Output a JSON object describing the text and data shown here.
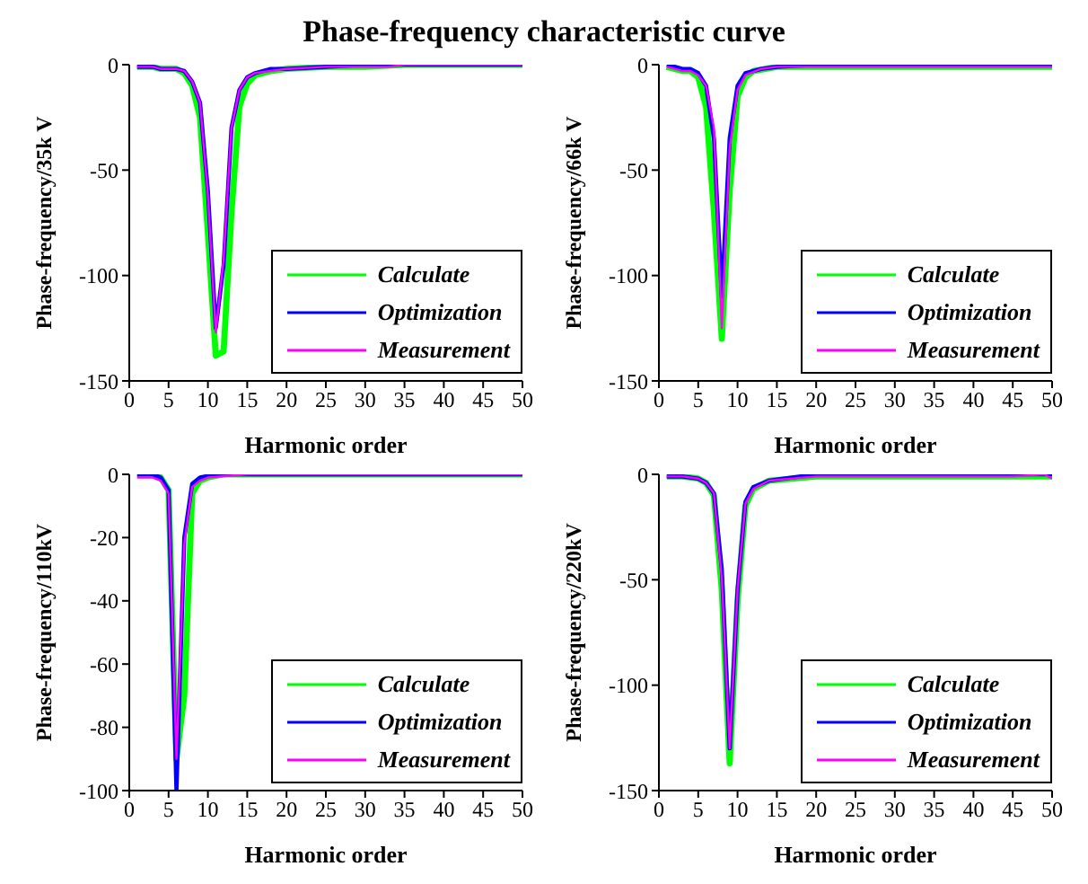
{
  "chart_data": [
    {
      "type": "line",
      "title": "Phase-frequency characteristic curve",
      "xlabel": "Harmonic order",
      "ylabel": "Phase-frequency/35k V",
      "xlim": [
        0,
        50
      ],
      "xticks": [
        0,
        5,
        10,
        15,
        20,
        25,
        30,
        35,
        40,
        45,
        50
      ],
      "ylim": [
        -150,
        0
      ],
      "yticks": [
        -150,
        -100,
        -50,
        0
      ],
      "grid": false,
      "legend": "bottom right",
      "series": [
        {
          "name": "Calculate",
          "color": "#00ff00",
          "x": [
            1,
            3,
            4,
            6,
            7,
            8,
            9,
            10,
            11,
            12,
            13,
            14,
            15,
            16,
            18,
            20,
            25,
            30,
            35,
            50
          ],
          "values": [
            -1,
            -1,
            -2,
            -2,
            -4,
            -10,
            -25,
            -80,
            -138,
            -136,
            -70,
            -20,
            -9,
            -5,
            -3,
            -2,
            -1,
            -1,
            0,
            0
          ]
        },
        {
          "name": "Optimization",
          "color": "#0000ff",
          "x": [
            1,
            3,
            4,
            6,
            7,
            8,
            9,
            10,
            11,
            12,
            13,
            14,
            15,
            16,
            18,
            20,
            25,
            30,
            50
          ],
          "values": [
            -1,
            -1,
            -2,
            -2,
            -3,
            -8,
            -18,
            -60,
            -125,
            -95,
            -30,
            -12,
            -6,
            -4,
            -2,
            -2,
            -1,
            0,
            0
          ]
        },
        {
          "name": "Measurement",
          "color": "#ff00ff",
          "x": [
            1,
            3,
            4,
            6,
            7,
            8,
            9,
            10,
            11,
            12,
            13,
            14,
            15,
            16,
            18,
            20,
            25,
            33,
            35,
            50
          ],
          "values": [
            -1,
            -1,
            -2,
            -2,
            -3,
            -8,
            -18,
            -62,
            -127,
            -92,
            -30,
            -12,
            -6,
            -4,
            -3,
            -2,
            -1,
            -1,
            0,
            0
          ]
        }
      ]
    },
    {
      "type": "line",
      "xlabel": "Harmonic order",
      "ylabel": "Phase-frequency/66k V",
      "xlim": [
        0,
        50
      ],
      "xticks": [
        0,
        5,
        10,
        15,
        20,
        25,
        30,
        35,
        40,
        45,
        50
      ],
      "ylim": [
        -150,
        0
      ],
      "yticks": [
        -150,
        -100,
        -50,
        0
      ],
      "grid": false,
      "legend": "bottom right",
      "series": [
        {
          "name": "Calculate",
          "color": "#00ff00",
          "x": [
            1,
            2,
            3,
            4,
            5,
            6,
            7,
            8,
            9,
            10,
            11,
            12,
            15,
            20,
            50
          ],
          "values": [
            -1,
            -2,
            -3,
            -3,
            -6,
            -20,
            -70,
            -130,
            -60,
            -15,
            -6,
            -3,
            -1,
            -1,
            -1
          ]
        },
        {
          "name": "Optimization",
          "color": "#0000ff",
          "x": [
            1,
            2,
            3,
            4,
            5,
            6,
            7,
            8,
            9,
            10,
            11,
            13,
            15,
            20,
            50
          ],
          "values": [
            0,
            -1,
            -2,
            -2,
            -4,
            -10,
            -35,
            -110,
            -35,
            -10,
            -4,
            -2,
            -1,
            0,
            0
          ]
        },
        {
          "name": "Measurement",
          "color": "#ff00ff",
          "x": [
            1,
            2,
            3,
            4,
            5,
            6,
            7,
            8,
            9,
            10,
            11,
            13,
            15,
            20,
            50
          ],
          "values": [
            -1,
            -2,
            -3,
            -3,
            -5,
            -10,
            -30,
            -125,
            -40,
            -12,
            -5,
            -2,
            -1,
            -1,
            -1
          ]
        }
      ]
    },
    {
      "type": "line",
      "xlabel": "Harmonic order",
      "ylabel": "Phase-frequency/110kV",
      "xlim": [
        0,
        50
      ],
      "xticks": [
        0,
        5,
        10,
        15,
        20,
        25,
        30,
        35,
        40,
        45,
        50
      ],
      "ylim": [
        -100,
        0
      ],
      "yticks": [
        -100,
        -80,
        -60,
        -40,
        -20,
        0
      ],
      "grid": false,
      "legend": "bottom right",
      "series": [
        {
          "name": "Calculate",
          "color": "#00ff00",
          "x": [
            1,
            3,
            4,
            5,
            6,
            7,
            8,
            9,
            10,
            12,
            50
          ],
          "values": [
            0,
            0,
            -1,
            -5,
            -90,
            -70,
            -6,
            -2,
            -1,
            0,
            0
          ]
        },
        {
          "name": "Optimization",
          "color": "#0000ff",
          "x": [
            1,
            3,
            4,
            5,
            6,
            7,
            8,
            9,
            11,
            50
          ],
          "values": [
            0,
            0,
            -1,
            -5,
            -100,
            -20,
            -3,
            -1,
            0,
            0
          ]
        },
        {
          "name": "Measurement",
          "color": "#ff00ff",
          "x": [
            1,
            3,
            4,
            5,
            6,
            7,
            8,
            9,
            10,
            15,
            50
          ],
          "values": [
            -1,
            -1,
            -2,
            -6,
            -90,
            -22,
            -4,
            -2,
            -1,
            0,
            0
          ]
        }
      ]
    },
    {
      "type": "line",
      "xlabel": "Harmonic order",
      "ylabel": "Phase-frequency/220kV",
      "xlim": [
        0,
        50
      ],
      "xticks": [
        0,
        5,
        10,
        15,
        20,
        25,
        30,
        35,
        40,
        45,
        50
      ],
      "ylim": [
        -150,
        0
      ],
      "yticks": [
        -150,
        -100,
        -50,
        0
      ],
      "grid": false,
      "legend": "bottom right",
      "series": [
        {
          "name": "Calculate",
          "color": "#00ff00",
          "x": [
            1,
            3,
            5,
            6,
            7,
            8,
            9,
            10,
            11,
            12,
            14,
            20,
            50
          ],
          "values": [
            -1,
            -1,
            -2,
            -4,
            -10,
            -55,
            -137,
            -60,
            -15,
            -7,
            -3,
            -1,
            -1
          ]
        },
        {
          "name": "Optimization",
          "color": "#0000ff",
          "x": [
            1,
            3,
            5,
            6,
            7,
            8,
            9,
            10,
            11,
            12,
            14,
            20,
            50
          ],
          "values": [
            -1,
            -1,
            -2,
            -4,
            -9,
            -45,
            -130,
            -55,
            -13,
            -6,
            -3,
            0,
            0
          ]
        },
        {
          "name": "Measurement",
          "color": "#ff00ff",
          "x": [
            1,
            3,
            5,
            6,
            7,
            8,
            9,
            10,
            11,
            12,
            14,
            20,
            45,
            49,
            50
          ],
          "values": [
            -1,
            -1,
            -2,
            -4,
            -9,
            -50,
            -130,
            -55,
            -14,
            -7,
            -3,
            -1,
            -1,
            0,
            -2
          ]
        }
      ]
    }
  ]
}
